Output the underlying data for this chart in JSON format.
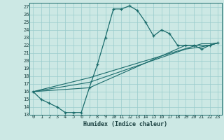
{
  "xlabel": "Humidex (Indice chaleur)",
  "bg_color": "#cce8e4",
  "line_color": "#1a6b6b",
  "grid_color": "#99cccc",
  "xlim": [
    -0.5,
    23.5
  ],
  "ylim": [
    13,
    27.5
  ],
  "yticks": [
    13,
    14,
    15,
    16,
    17,
    18,
    19,
    20,
    21,
    22,
    23,
    24,
    25,
    26,
    27
  ],
  "xticks": [
    0,
    1,
    2,
    3,
    4,
    5,
    6,
    7,
    8,
    9,
    10,
    11,
    12,
    13,
    14,
    15,
    16,
    17,
    18,
    19,
    20,
    21,
    22,
    23
  ],
  "line1_x": [
    0,
    1,
    2,
    3,
    4,
    5,
    6,
    7,
    8,
    9,
    10,
    11,
    12,
    13,
    14,
    15,
    16,
    17,
    18,
    19,
    20,
    21,
    22,
    23
  ],
  "line1_y": [
    16.0,
    15.0,
    14.5,
    14.0,
    13.3,
    13.3,
    13.3,
    16.5,
    19.5,
    23.0,
    26.7,
    26.7,
    27.1,
    26.5,
    25.0,
    23.2,
    24.0,
    23.5,
    22.0,
    22.0,
    22.0,
    21.5,
    22.0,
    22.3
  ],
  "line2_x": [
    0,
    7,
    19,
    21,
    22,
    23
  ],
  "line2_y": [
    16.0,
    16.5,
    22.0,
    22.0,
    22.0,
    22.3
  ],
  "line3_x": [
    0,
    7,
    19,
    21,
    22,
    23
  ],
  "line3_y": [
    16.0,
    17.2,
    21.5,
    21.8,
    22.0,
    22.3
  ],
  "line4_x": [
    0,
    7,
    21,
    22,
    23
  ],
  "line4_y": [
    16.0,
    17.8,
    22.2,
    22.2,
    22.3
  ],
  "tick_fontsize": 5.0,
  "xlabel_fontsize": 6.0
}
